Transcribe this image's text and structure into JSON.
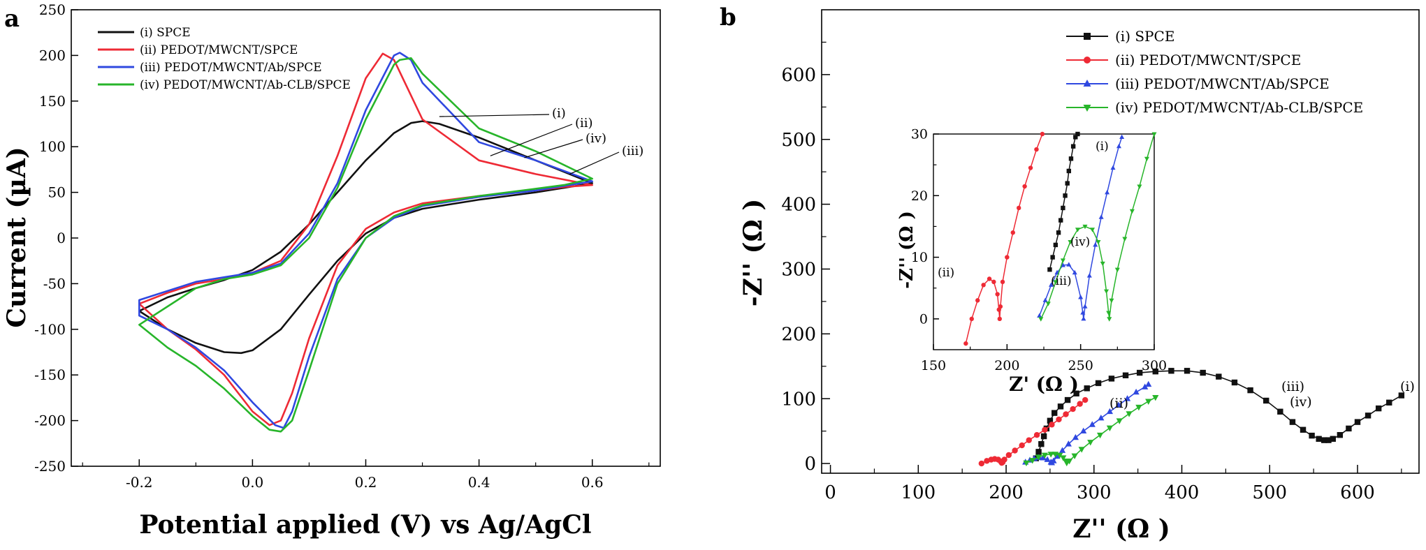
{
  "panels": {
    "a": "a",
    "b": "b"
  },
  "colors": {
    "i": "#111111",
    "ii": "#ee2a35",
    "iii": "#2f48e0",
    "iv": "#27b52a",
    "axis": "#000000"
  },
  "chart_data": [
    {
      "id": "a",
      "type": "line",
      "xlabel": "Potential applied (V) vs Ag/AgCl",
      "ylabel": "Current (µA)",
      "xlim": [
        -0.32,
        0.72
      ],
      "ylim": [
        -250,
        250
      ],
      "xticks": [
        -0.2,
        0.0,
        0.2,
        0.4,
        0.6
      ],
      "xtick_labels": [
        "-0.2",
        "0.0",
        "0.2",
        "0.4",
        "0.6"
      ],
      "yticks": [
        -250,
        -200,
        -150,
        -100,
        -50,
        0,
        50,
        100,
        150,
        200,
        250
      ],
      "ytick_labels": [
        "-250",
        "-200",
        "-150",
        "-100",
        "-50",
        "0",
        "50",
        "100",
        "150",
        "200",
        "250"
      ],
      "legend_position": "top-left",
      "series": [
        {
          "key": "i",
          "name": "(i) SPCE",
          "label": "(i)",
          "x": [
            -0.2,
            -0.15,
            -0.1,
            -0.05,
            0.0,
            0.05,
            0.1,
            0.15,
            0.2,
            0.25,
            0.28,
            0.3,
            0.33,
            0.4,
            0.5,
            0.6,
            0.55,
            0.5,
            0.4,
            0.3,
            0.25,
            0.2,
            0.15,
            0.1,
            0.05,
            0.0,
            -0.02,
            -0.05,
            -0.1,
            -0.15,
            -0.2
          ],
          "y": [
            -80,
            -65,
            -55,
            -46,
            -35,
            -15,
            15,
            50,
            85,
            115,
            126,
            128,
            125,
            110,
            85,
            60,
            55,
            50,
            42,
            32,
            22,
            5,
            -25,
            -62,
            -100,
            -123,
            -126,
            -125,
            -115,
            -100,
            -80
          ]
        },
        {
          "key": "ii",
          "name": "(ii) PEDOT/MWCNT/SPCE",
          "label": "(ii)",
          "x": [
            -0.2,
            -0.15,
            -0.1,
            -0.05,
            0.0,
            0.05,
            0.1,
            0.15,
            0.2,
            0.23,
            0.25,
            0.3,
            0.4,
            0.5,
            0.6,
            0.55,
            0.5,
            0.4,
            0.3,
            0.25,
            0.2,
            0.15,
            0.1,
            0.07,
            0.05,
            0.03,
            0.0,
            -0.05,
            -0.1,
            -0.15,
            -0.2
          ],
          "y": [
            -72,
            -60,
            -50,
            -45,
            -38,
            -25,
            15,
            90,
            175,
            202,
            195,
            130,
            85,
            70,
            58,
            56,
            52,
            46,
            38,
            28,
            10,
            -30,
            -110,
            -170,
            -200,
            -205,
            -190,
            -150,
            -122,
            -100,
            -72
          ]
        },
        {
          "key": "iii",
          "name": "(iii) PEDOT/MWCNT/Ab/SPCE",
          "label": "(iii)",
          "x": [
            -0.2,
            -0.15,
            -0.1,
            -0.05,
            0.0,
            0.05,
            0.1,
            0.15,
            0.2,
            0.25,
            0.26,
            0.28,
            0.3,
            0.4,
            0.5,
            0.6,
            0.55,
            0.5,
            0.4,
            0.3,
            0.25,
            0.2,
            0.15,
            0.1,
            0.07,
            0.055,
            0.04,
            0.0,
            -0.05,
            -0.1,
            -0.15,
            -0.2
          ],
          "y": [
            -68,
            -58,
            -48,
            -43,
            -38,
            -28,
            5,
            60,
            140,
            200,
            203,
            195,
            170,
            105,
            85,
            62,
            57,
            52,
            45,
            35,
            22,
            0,
            -45,
            -130,
            -190,
            -208,
            -205,
            -180,
            -145,
            -120,
            -100,
            -85
          ]
        },
        {
          "key": "iv",
          "name": "(iv) PEDOT/MWCNT/Ab-CLB/SPCE",
          "label": "(iv)",
          "x": [
            -0.2,
            -0.15,
            -0.1,
            -0.05,
            0.0,
            0.05,
            0.1,
            0.15,
            0.2,
            0.25,
            0.26,
            0.28,
            0.3,
            0.4,
            0.5,
            0.6,
            0.55,
            0.5,
            0.4,
            0.3,
            0.25,
            0.2,
            0.15,
            0.1,
            0.07,
            0.05,
            0.03,
            0.0,
            -0.05,
            -0.1,
            -0.15,
            -0.2
          ],
          "y": [
            -95,
            -75,
            -55,
            -45,
            -40,
            -30,
            0,
            55,
            130,
            190,
            195,
            197,
            180,
            120,
            95,
            65,
            58,
            54,
            46,
            36,
            24,
            0,
            -50,
            -145,
            -200,
            -212,
            -210,
            -195,
            -165,
            -140,
            -120,
            -95
          ]
        }
      ]
    },
    {
      "id": "b",
      "type": "scatter",
      "xlabel": "Z'' (Ω )",
      "ylabel": "-Z'' (Ω )",
      "xlim": [
        -10,
        670
      ],
      "ylim": [
        -15,
        700
      ],
      "xticks": [
        0,
        100,
        200,
        300,
        400,
        500,
        600
      ],
      "xtick_labels": [
        "0",
        "100",
        "200",
        "300",
        "400",
        "500",
        "600"
      ],
      "yticks": [
        0,
        100,
        200,
        300,
        400,
        500,
        600
      ],
      "ytick_labels": [
        "0",
        "100",
        "200",
        "300",
        "400",
        "500",
        "600"
      ],
      "legend_position": "top-right",
      "series": [
        {
          "key": "i",
          "name": "(i) SPCE",
          "label": "(i)",
          "marker": "square",
          "x": [
            234,
            237,
            240,
            243,
            246,
            250,
            255,
            262,
            270,
            280,
            292,
            305,
            320,
            336,
            352,
            370,
            388,
            406,
            424,
            442,
            460,
            478,
            496,
            512,
            526,
            538,
            548,
            556,
            562,
            567,
            572,
            580,
            590,
            600,
            612,
            624,
            636,
            650
          ],
          "y": [
            8,
            18,
            30,
            42,
            54,
            66,
            78,
            88,
            98,
            108,
            116,
            124,
            131,
            136,
            140,
            142,
            143,
            143,
            140,
            134,
            125,
            113,
            97,
            80,
            64,
            52,
            43,
            38,
            36,
            36,
            38,
            44,
            54,
            64,
            74,
            85,
            94,
            105
          ]
        },
        {
          "key": "ii",
          "name": "(ii) PEDOT/MWCNT/SPCE",
          "label": "(ii)",
          "marker": "circle",
          "x": [
            172,
            178,
            183,
            187,
            191,
            194,
            195,
            196,
            198,
            203,
            210,
            218,
            226,
            235,
            244,
            252,
            260,
            268,
            276,
            284,
            290
          ],
          "y": [
            0,
            4,
            6,
            7,
            6,
            3,
            1,
            2,
            6,
            13,
            20,
            28,
            36,
            44,
            52,
            60,
            68,
            76,
            84,
            92,
            98
          ]
        },
        {
          "key": "iii",
          "name": "(iii) PEDOT/MWCNT/Ab/SPCE",
          "label": "(iii)",
          "marker": "triangle-up",
          "x": [
            222,
            227,
            232,
            237,
            242,
            247,
            251,
            252,
            254,
            258,
            264,
            271,
            279,
            288,
            298,
            308,
            318,
            328,
            338,
            348,
            358,
            362
          ],
          "y": [
            2,
            5,
            7.5,
            9,
            8.5,
            6,
            2,
            1,
            4,
            11,
            20,
            30,
            40,
            50,
            60,
            70,
            80,
            90,
            100,
            110,
            118,
            122
          ]
        },
        {
          "key": "iv",
          "name": "(iv) PEDOT/MWCNT/Ab-CLB/SPCE",
          "label": "(iv)",
          "marker": "triangle-down",
          "x": [
            223,
            230,
            237,
            244,
            251,
            256,
            261,
            265,
            268,
            269,
            272,
            278,
            286,
            296,
            307,
            318,
            329,
            340,
            351,
            362,
            370
          ],
          "y": [
            1,
            5,
            10,
            13,
            14.5,
            14.5,
            13,
            9,
            4,
            1,
            4,
            12,
            22,
            33,
            44,
            55,
            66,
            77,
            87,
            96,
            102
          ]
        }
      ],
      "inset": {
        "xlabel": "Z' (Ω )",
        "ylabel": "-Z'' (Ω )",
        "xlim": [
          150,
          300
        ],
        "ylim": [
          -5,
          30
        ],
        "xticks": [
          150,
          200,
          250,
          300
        ],
        "xtick_labels": [
          "150",
          "200",
          "250",
          "300"
        ],
        "yticks": [
          0,
          10,
          20,
          30
        ],
        "ytick_labels": [
          "0",
          "10",
          "20",
          "30"
        ],
        "series": [
          {
            "key": "ii",
            "label": "(ii)",
            "x": [
              172,
              176,
              180,
              184,
              188,
              191,
              193.5,
              194.5,
              195,
              195.5,
              197,
              200,
              204,
              208,
              212,
              216,
              220,
              224
            ],
            "y": [
              -4,
              0,
              3,
              5.5,
              6.5,
              6,
              4,
              1.5,
              0,
              2,
              6,
              10,
              14,
              18,
              21.5,
              24.5,
              27.5,
              30
            ]
          },
          {
            "key": "i",
            "label": "(i)",
            "x": [
              229,
              231,
              233,
              235,
              236.5,
              238,
              239.5,
              241,
              242,
              243.5,
              245,
              246.5,
              248
            ],
            "y": [
              8,
              10,
              12,
              14,
              16,
              18,
              20,
              22,
              24,
              26,
              28,
              29.5,
              30
            ]
          },
          {
            "key": "iii",
            "label": "(iii)",
            "x": [
              222,
              226,
              230,
              234,
              238,
              242,
              246,
              250,
              251.5,
              252,
              253,
              256,
              260,
              264,
              268,
              272,
              276,
              278
            ],
            "y": [
              0.5,
              3,
              5.5,
              7.5,
              8.7,
              8.8,
              7.5,
              3.5,
              1,
              0,
              2,
              7,
              12,
              16.5,
              20.5,
              24.5,
              28,
              29.5
            ]
          },
          {
            "key": "iv",
            "label": "(iv)",
            "x": [
              223,
              228,
              233,
              238,
              243,
              248,
              253,
              258,
              262,
              265,
              267.5,
              269,
              269.5,
              271,
              275,
              280,
              285,
              290,
              295,
              300
            ],
            "y": [
              0,
              2.5,
              6,
              9.5,
              12.5,
              14.5,
              15,
              14.5,
              12.5,
              9,
              4.5,
              1,
              0,
              3,
              8,
              13,
              17.5,
              21.5,
              26,
              30
            ]
          }
        ]
      }
    }
  ]
}
